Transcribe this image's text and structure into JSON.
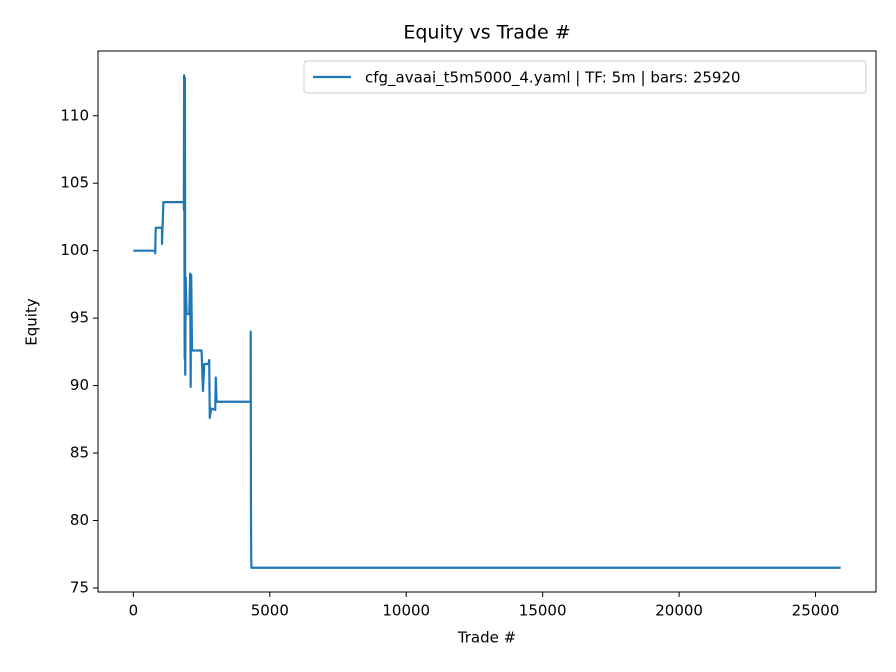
{
  "chart_data": {
    "type": "line",
    "title": "Equity vs Trade #",
    "x_label": "Trade #",
    "y_label": "Equity",
    "xlim": [
      -1296,
      27216
    ],
    "ylim": [
      74.7,
      114.8
    ],
    "xticks": [
      0,
      5000,
      10000,
      15000,
      20000,
      25000
    ],
    "yticks": [
      75,
      80,
      85,
      90,
      95,
      100,
      105,
      110
    ],
    "legend": "upper right",
    "series": [
      {
        "name": "cfg_avaai_t5m5000_4.yaml | TF: 5m | bars: 25920",
        "color": "#1f77b4",
        "x": [
          0,
          800,
          800,
          820,
          1050,
          1050,
          1100,
          1850,
          1850,
          1860,
          1880,
          1890,
          1900,
          1920,
          1950,
          2050,
          2080,
          2100,
          2120,
          2150,
          2500,
          2550,
          2600,
          2750,
          2780,
          2800,
          2850,
          3000,
          3020,
          3050,
          4300,
          4300,
          4310,
          4320,
          4330,
          25919
        ],
        "values": [
          100,
          100,
          99.8,
          101.7,
          101.7,
          100.5,
          103.6,
          103.6,
          103,
          113,
          92,
          112.8,
          90.8,
          98,
          95.3,
          95.3,
          98.3,
          89.9,
          98.2,
          92.6,
          92.6,
          89.6,
          91.6,
          91.6,
          91.9,
          87.6,
          88.3,
          88.2,
          90.6,
          88.8,
          88.8,
          94,
          80.9,
          77.0,
          76.5,
          76.5
        ]
      }
    ]
  }
}
